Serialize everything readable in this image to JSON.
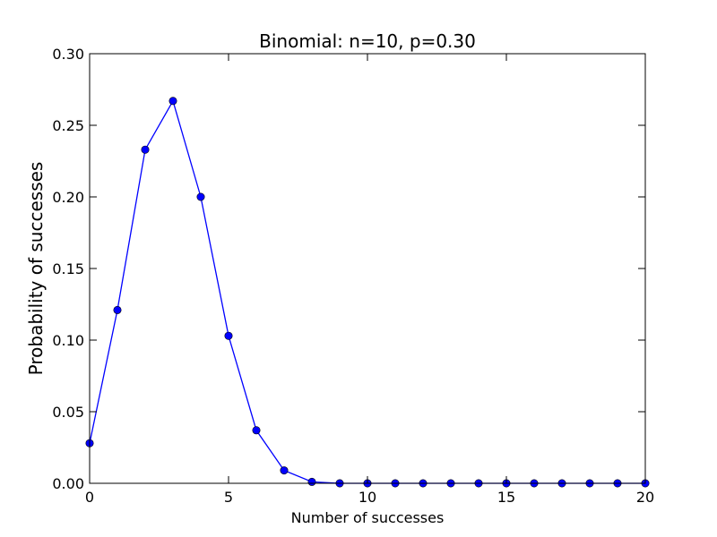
{
  "chart_data": {
    "type": "line",
    "title": "Binomial: n=10, p=0.30",
    "xlabel": "Number of successes",
    "ylabel": "Probability of successes",
    "xlim": [
      0,
      20
    ],
    "ylim": [
      0,
      0.3
    ],
    "x_ticks": [
      0,
      5,
      10,
      15,
      20
    ],
    "x_tick_labels": [
      "0",
      "5",
      "10",
      "15",
      "20"
    ],
    "y_ticks": [
      0,
      0.05,
      0.1,
      0.15,
      0.2,
      0.25,
      0.3
    ],
    "y_tick_labels": [
      "0.00",
      "0.05",
      "0.10",
      "0.15",
      "0.20",
      "0.25",
      "0.30"
    ],
    "grid": false,
    "series": [
      {
        "color": "#0000ff",
        "marker": "circle",
        "x": [
          0,
          1,
          2,
          3,
          4,
          5,
          6,
          7,
          8,
          9,
          10,
          11,
          12,
          13,
          14,
          15,
          16,
          17,
          18,
          19,
          20
        ],
        "y": [
          0.028,
          0.121,
          0.233,
          0.267,
          0.2,
          0.103,
          0.037,
          0.009,
          0.001,
          0.0,
          0.0,
          0.0,
          0.0,
          0.0,
          0.0,
          0.0,
          0.0,
          0.0,
          0.0,
          0.0,
          0.0
        ]
      }
    ]
  }
}
